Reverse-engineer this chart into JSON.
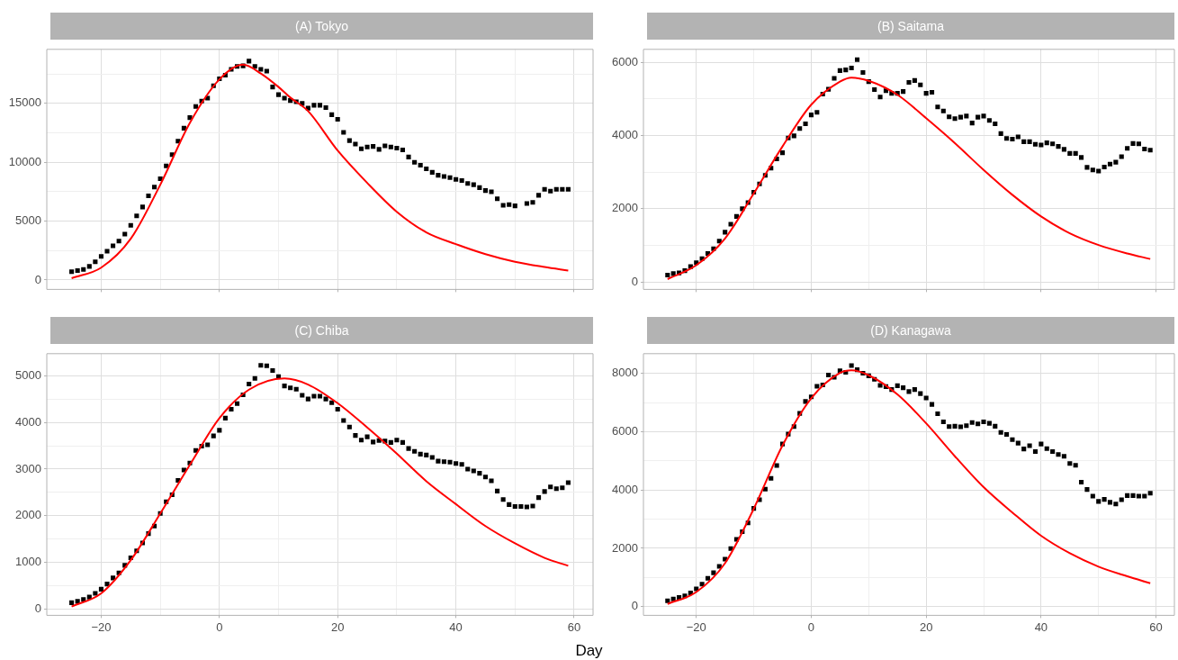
{
  "chart_data": [
    {
      "type": "scatter",
      "title": "(A) Tokyo",
      "xlim": [
        -29.2,
        63.2
      ],
      "xticks": [
        -20,
        {
          "value": -10,
          "label": null
        },
        0,
        {
          "value": 10,
          "label": null
        },
        20,
        {
          "value": 30,
          "label": null
        },
        40,
        {
          "value": 50,
          "label": null
        },
        60
      ],
      "ylim": [
        -800,
        19600
      ],
      "yticks": [
        0,
        {
          "value": 2500,
          "label": null
        },
        5000,
        {
          "value": 7500,
          "label": null
        },
        10000,
        {
          "value": 12500,
          "label": null
        },
        15000,
        {
          "value": 17500,
          "label": null
        }
      ],
      "grid": true,
      "tick_labels": "y",
      "series": [
        {
          "type": "scatter",
          "color": "#000000",
          "marker": "square",
          "x": [
            -25,
            -24,
            -23,
            -22,
            -21,
            -20,
            -19,
            -18,
            -17,
            -16,
            -15,
            -14,
            -13,
            -12,
            -11,
            -10,
            -9,
            -8,
            -7,
            -6,
            -5,
            -4,
            -3,
            -2,
            -1,
            0,
            1,
            2,
            3,
            4,
            5,
            6,
            7,
            8,
            9,
            10,
            11,
            12,
            13,
            14,
            15,
            16,
            17,
            18,
            19,
            20,
            21,
            22,
            23,
            24,
            25,
            26,
            27,
            28,
            29,
            30,
            31,
            32,
            33,
            34,
            35,
            36,
            37,
            38,
            39,
            40,
            41,
            42,
            43,
            44,
            45,
            46,
            47,
            48,
            49,
            50,
            51,
            52,
            53,
            54,
            55,
            56,
            57,
            58,
            59
          ],
          "values": [
            700,
            800,
            900,
            1150,
            1550,
            2000,
            2450,
            2900,
            3300,
            3900,
            4650,
            5450,
            6200,
            7150,
            7900,
            8600,
            9700,
            10650,
            11800,
            12900,
            13800,
            14750,
            15200,
            15450,
            16500,
            17100,
            17400,
            17900,
            18150,
            18200,
            18600,
            18150,
            17900,
            17750,
            16400,
            15750,
            15450,
            15250,
            15150,
            15000,
            14600,
            14850,
            14850,
            14650,
            14050,
            13650,
            12550,
            11850,
            11550,
            11150,
            11300,
            11350,
            11100,
            11400,
            11300,
            11200,
            11050,
            10450,
            10000,
            9750,
            9450,
            9150,
            8900,
            8800,
            8700,
            8550,
            8450,
            8200,
            8100,
            7850,
            7600,
            7500,
            6900,
            6350,
            6400,
            6300,
            null,
            6500,
            6600,
            7200,
            7700,
            7550,
            7700,
            7700,
            7700
          ]
        },
        {
          "type": "line",
          "color": "#ff0000",
          "marker": "none",
          "x": [
            -25,
            -20,
            -15,
            -10,
            -5,
            0,
            4,
            7,
            10,
            12,
            15,
            20,
            25,
            30,
            35,
            40,
            45,
            50,
            55,
            59
          ],
          "values": [
            150,
            1050,
            3500,
            8100,
            13350,
            17050,
            18300,
            17550,
            16400,
            15500,
            14350,
            11000,
            8250,
            5800,
            4050,
            3050,
            2200,
            1550,
            1100,
            800
          ]
        }
      ]
    },
    {
      "type": "scatter",
      "title": "(B) Saitama",
      "xlim": [
        -29.2,
        63.2
      ],
      "xticks": [
        -20,
        {
          "value": -10,
          "label": null
        },
        0,
        {
          "value": 10,
          "label": null
        },
        20,
        {
          "value": 30,
          "label": null
        },
        40,
        {
          "value": 50,
          "label": null
        },
        60
      ],
      "ylim": [
        -200,
        6350
      ],
      "yticks": [
        0,
        {
          "value": 1000,
          "label": null
        },
        2000,
        {
          "value": 3000,
          "label": null
        },
        4000,
        {
          "value": 5000,
          "label": null
        },
        6000
      ],
      "grid": true,
      "tick_labels": "y",
      "series": [
        {
          "type": "scatter",
          "color": "#000000",
          "marker": "square",
          "x": [
            -25,
            -24,
            -23,
            -22,
            -21,
            -20,
            -19,
            -18,
            -17,
            -16,
            -15,
            -14,
            -13,
            -12,
            -11,
            -10,
            -9,
            -8,
            -7,
            -6,
            -5,
            -4,
            -3,
            -2,
            -1,
            0,
            1,
            2,
            3,
            4,
            5,
            6,
            7,
            8,
            9,
            10,
            11,
            12,
            13,
            14,
            15,
            16,
            17,
            18,
            19,
            20,
            21,
            22,
            23,
            24,
            25,
            26,
            27,
            28,
            29,
            30,
            31,
            32,
            33,
            34,
            35,
            36,
            37,
            38,
            39,
            40,
            41,
            42,
            43,
            44,
            45,
            46,
            47,
            48,
            49,
            50,
            51,
            52,
            53,
            54,
            55,
            56,
            57,
            58,
            59
          ],
          "values": [
            190,
            230,
            250,
            310,
            420,
            530,
            640,
            780,
            910,
            1120,
            1360,
            1580,
            1790,
            2000,
            2170,
            2450,
            2680,
            2910,
            3110,
            3360,
            3530,
            3930,
            3990,
            4190,
            4320,
            4560,
            4630,
            5130,
            5260,
            5560,
            5770,
            5790,
            5840,
            6070,
            5720,
            5470,
            5250,
            5050,
            5220,
            5150,
            5150,
            5200,
            5450,
            5500,
            5380,
            5150,
            5180,
            4780,
            4670,
            4510,
            4460,
            4500,
            4530,
            4340,
            4500,
            4530,
            4410,
            4320,
            4050,
            3920,
            3900,
            3960,
            3830,
            3830,
            3760,
            3740,
            3800,
            3770,
            3700,
            3620,
            3510,
            3510,
            3400,
            3130,
            3060,
            3030,
            3140,
            3220,
            3270,
            3420,
            3650,
            3780,
            3770,
            3630,
            3600
          ]
        },
        {
          "type": "line",
          "color": "#ff0000",
          "marker": "none",
          "x": [
            -25,
            -20,
            -15,
            -10,
            -5,
            0,
            5,
            7,
            10,
            15,
            20,
            25,
            30,
            35,
            40,
            45,
            50,
            55,
            59
          ],
          "values": [
            80,
            460,
            1190,
            2420,
            3700,
            4840,
            5470,
            5580,
            5490,
            5110,
            4470,
            3790,
            3060,
            2380,
            1790,
            1330,
            1010,
            780,
            630
          ]
        }
      ]
    },
    {
      "type": "scatter",
      "title": "(C) Chiba",
      "xlim": [
        -29.2,
        63.2
      ],
      "xticks": [
        {
          "value": -20,
          "label": "−20"
        },
        {
          "value": -10,
          "label": null
        },
        0,
        {
          "value": 10,
          "label": null
        },
        20,
        {
          "value": 30,
          "label": null
        },
        40,
        {
          "value": 50,
          "label": null
        },
        60
      ],
      "ylim": [
        -130,
        5470
      ],
      "yticks": [
        0,
        {
          "value": 500,
          "label": null
        },
        1000,
        {
          "value": 1500,
          "label": null
        },
        2000,
        {
          "value": 2500,
          "label": null
        },
        3000,
        {
          "value": 3500,
          "label": null
        },
        4000,
        {
          "value": 4500,
          "label": null
        },
        5000
      ],
      "grid": true,
      "series": [
        {
          "type": "scatter",
          "color": "#000000",
          "marker": "square",
          "x": [
            -25,
            -24,
            -23,
            -22,
            -21,
            -20,
            -19,
            -18,
            -17,
            -16,
            -15,
            -14,
            -13,
            -12,
            -11,
            -10,
            -9,
            -8,
            -7,
            -6,
            -5,
            -4,
            -3,
            -2,
            -1,
            0,
            1,
            2,
            3,
            4,
            5,
            6,
            7,
            8,
            9,
            10,
            11,
            12,
            13,
            14,
            15,
            16,
            17,
            18,
            19,
            20,
            21,
            22,
            23,
            24,
            25,
            26,
            27,
            28,
            29,
            30,
            31,
            32,
            33,
            34,
            35,
            36,
            37,
            38,
            39,
            40,
            41,
            42,
            43,
            44,
            45,
            46,
            47,
            48,
            49,
            50,
            51,
            52,
            53,
            54,
            55,
            56,
            57,
            58,
            59
          ],
          "values": [
            140,
            170,
            210,
            260,
            340,
            430,
            540,
            670,
            780,
            940,
            1100,
            1250,
            1420,
            1620,
            1780,
            2050,
            2300,
            2450,
            2760,
            2980,
            3130,
            3400,
            3490,
            3520,
            3710,
            3830,
            4090,
            4280,
            4400,
            4590,
            4820,
            4940,
            5220,
            5210,
            5110,
            4980,
            4780,
            4740,
            4710,
            4580,
            4500,
            4560,
            4560,
            4500,
            4420,
            4280,
            4040,
            3900,
            3720,
            3620,
            3690,
            3580,
            3610,
            3600,
            3570,
            3620,
            3570,
            3440,
            3380,
            3320,
            3300,
            3250,
            3170,
            3160,
            3150,
            3120,
            3100,
            3000,
            2960,
            2910,
            2830,
            2750,
            2530,
            2350,
            2240,
            2200,
            2200,
            2190,
            2210,
            2390,
            2520,
            2620,
            2580,
            2600,
            2710
          ]
        },
        {
          "type": "line",
          "color": "#ff0000",
          "marker": "none",
          "x": [
            -25,
            -20,
            -15,
            -10,
            -5,
            0,
            5,
            11,
            15,
            20,
            25,
            30,
            35,
            40,
            45,
            50,
            55,
            59
          ],
          "values": [
            60,
            340,
            1050,
            2050,
            3090,
            4090,
            4700,
            4940,
            4810,
            4410,
            3890,
            3330,
            2740,
            2250,
            1780,
            1410,
            1100,
            930
          ]
        }
      ]
    },
    {
      "type": "scatter",
      "title": "(D) Kanagawa",
      "xlabel": "Day",
      "xlim": [
        -29.2,
        63.2
      ],
      "xticks": [
        {
          "value": -20,
          "label": "−20"
        },
        {
          "value": -10,
          "label": null
        },
        0,
        {
          "value": 10,
          "label": null
        },
        20,
        {
          "value": 30,
          "label": null
        },
        40,
        {
          "value": 50,
          "label": null
        },
        60
      ],
      "ylim": [
        -300,
        8680
      ],
      "yticks": [
        0,
        {
          "value": 1000,
          "label": null
        },
        2000,
        {
          "value": 3000,
          "label": null
        },
        4000,
        {
          "value": 5000,
          "label": null
        },
        6000,
        {
          "value": 7000,
          "label": null
        },
        8000
      ],
      "grid": true,
      "series": [
        {
          "type": "scatter",
          "color": "#000000",
          "marker": "square",
          "x": [
            -25,
            -24,
            -23,
            -22,
            -21,
            -20,
            -19,
            -18,
            -17,
            -16,
            -15,
            -14,
            -13,
            -12,
            -11,
            -10,
            -9,
            -8,
            -7,
            -6,
            -5,
            -4,
            -3,
            -2,
            -1,
            0,
            1,
            2,
            3,
            4,
            5,
            6,
            7,
            8,
            9,
            10,
            11,
            12,
            13,
            14,
            15,
            16,
            17,
            18,
            19,
            20,
            21,
            22,
            23,
            24,
            25,
            26,
            27,
            28,
            29,
            30,
            31,
            32,
            33,
            34,
            35,
            36,
            37,
            38,
            39,
            40,
            41,
            42,
            43,
            44,
            45,
            46,
            47,
            48,
            49,
            50,
            51,
            52,
            53,
            54,
            55,
            56,
            57,
            58,
            59
          ],
          "values": [
            200,
            260,
            310,
            370,
            470,
            610,
            770,
            970,
            1160,
            1380,
            1630,
            1990,
            2310,
            2570,
            2870,
            3370,
            3670,
            4030,
            4400,
            4840,
            5580,
            5920,
            6180,
            6630,
            7040,
            7200,
            7560,
            7610,
            7950,
            7870,
            8090,
            8040,
            8270,
            8130,
            8010,
            7920,
            7800,
            7590,
            7550,
            7450,
            7580,
            7510,
            7380,
            7450,
            7310,
            7160,
            6940,
            6620,
            6340,
            6180,
            6190,
            6170,
            6210,
            6320,
            6270,
            6340,
            6290,
            6190,
            5980,
            5910,
            5730,
            5610,
            5410,
            5520,
            5320,
            5580,
            5420,
            5320,
            5220,
            5160,
            4910,
            4850,
            4270,
            4020,
            3790,
            3610,
            3680,
            3580,
            3520,
            3670,
            3810,
            3810,
            3790,
            3790,
            3890
          ]
        },
        {
          "type": "line",
          "color": "#ff0000",
          "marker": "none",
          "x": [
            -25,
            -20,
            -15,
            -10,
            -5,
            0,
            5,
            7,
            10,
            15,
            20,
            25,
            30,
            35,
            40,
            45,
            50,
            55,
            59
          ],
          "values": [
            90,
            500,
            1490,
            3360,
            5530,
            7150,
            8020,
            8110,
            7940,
            7280,
            6290,
            5160,
            4100,
            3230,
            2430,
            1830,
            1370,
            1040,
            800
          ]
        }
      ]
    }
  ]
}
